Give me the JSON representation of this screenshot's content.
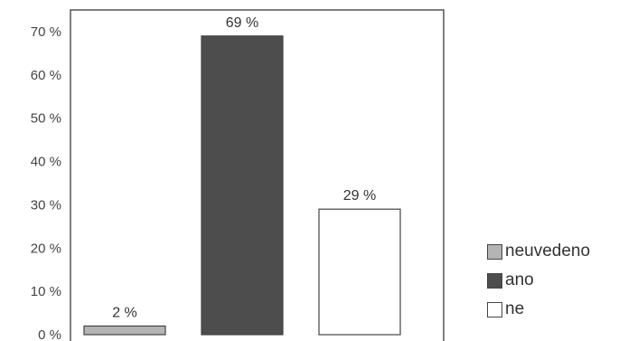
{
  "chart_data": {
    "type": "bar",
    "categories": [
      "neuvedeno",
      "ano",
      "ne"
    ],
    "values": [
      2,
      69,
      29
    ],
    "data_labels": [
      "2 %",
      "69 %",
      "29 %"
    ],
    "y_ticks": [
      "0 %",
      "10 %",
      "20 %",
      "30 %",
      "40 %",
      "50 %",
      "60 %",
      "70 %"
    ],
    "ylim": [
      0,
      70
    ],
    "grid": false,
    "legend_position": "right",
    "colors": [
      "#b4b4b4",
      "#4d4d4d",
      "#ffffff"
    ],
    "legend": [
      {
        "label": "neuvedeno",
        "color": "#b4b4b4"
      },
      {
        "label": "ano",
        "color": "#4d4d4d"
      },
      {
        "label": "ne",
        "color": "#ffffff"
      }
    ]
  }
}
